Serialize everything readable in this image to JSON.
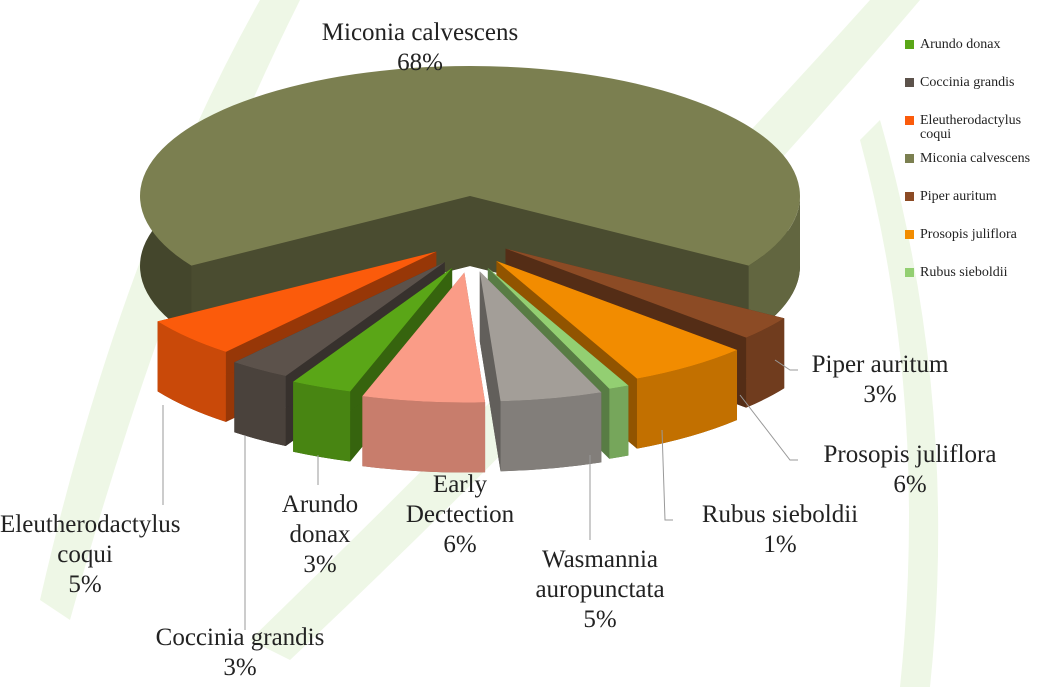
{
  "chart_data": {
    "type": "pie",
    "categories": [
      "Miconia calvescens",
      "Piper auritum",
      "Prosopis juliflora",
      "Rubus sieboldii",
      "Wasmannia auropunctata",
      "Early Dectection",
      "Arundo donax",
      "Coccinia grandis",
      "Eleutherodactylus coqui"
    ],
    "values": [
      68,
      3,
      6,
      1,
      5,
      6,
      3,
      3,
      5
    ],
    "value_labels": [
      "68%",
      "3%",
      "6%",
      "1%",
      "5%",
      "6%",
      "3%",
      "3%",
      "5%"
    ],
    "colors": [
      "#7b7f50",
      "#8c4b25",
      "#f28c00",
      "#93cf72",
      "#a39e98",
      "#fa9c87",
      "#5aa617",
      "#5c524b",
      "#fb5b0b"
    ],
    "legend": [
      {
        "name": "Arundo donax",
        "color": "#5aa617"
      },
      {
        "name": "Coccinia grandis",
        "color": "#5c524b"
      },
      {
        "name": "Eleutherodactylus coqui",
        "color": "#fb5b0b"
      },
      {
        "name": "Miconia calvescens",
        "color": "#7b7f50"
      },
      {
        "name": "Piper auritum",
        "color": "#8c4b25"
      },
      {
        "name": "Prosopis juliflora",
        "color": "#f28c00"
      },
      {
        "name": "Rubus sieboldii",
        "color": "#93cf72"
      }
    ]
  }
}
